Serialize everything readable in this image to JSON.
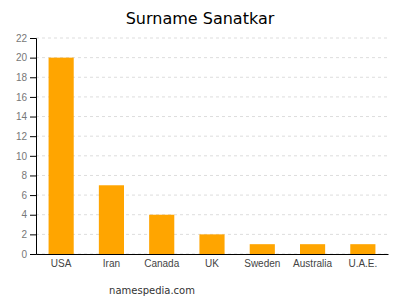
{
  "chart_data": {
    "type": "bar",
    "title": "Surname Sanatkar",
    "categories": [
      "USA",
      "Iran",
      "Canada",
      "UK",
      "Sweden",
      "Australia",
      "U.A.E."
    ],
    "values": [
      20,
      7,
      4,
      2,
      1,
      1,
      1
    ],
    "color": "#FFA500",
    "ylim": [
      0,
      22
    ],
    "yticks": [
      0,
      2,
      4,
      6,
      8,
      10,
      12,
      14,
      16,
      18,
      20,
      22
    ],
    "grid": true,
    "annotations": [
      "namespedia.com"
    ]
  }
}
